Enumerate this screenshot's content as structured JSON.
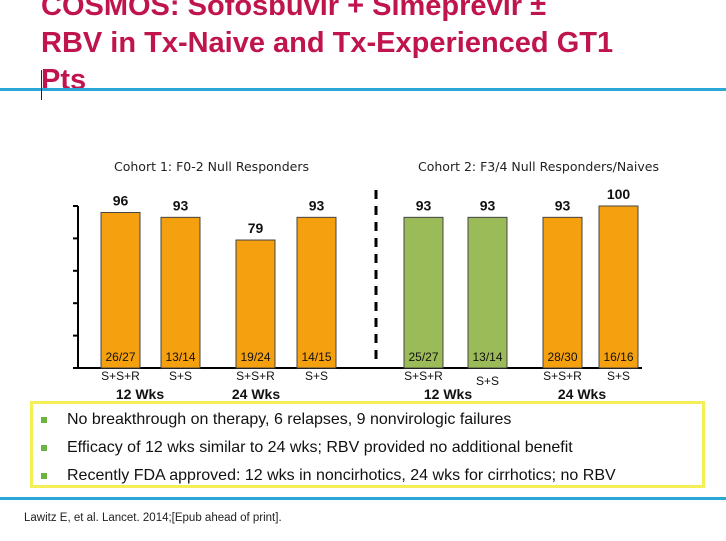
{
  "slide": {
    "title_lines": [
      "COSMOS: Sofosbuvir + Simeprevir ±",
      "RBV in Tx-Naive and Tx-Experienced GT1",
      "Pts"
    ]
  },
  "chart_data": {
    "type": "bar",
    "ylim": [
      0,
      100
    ],
    "cohorts": [
      {
        "label": "Cohort 1: F0-2 Null Responders",
        "groups": [
          {
            "label": "12 Wks",
            "bars": [
              {
                "category": "S+S+R",
                "value": 96,
                "fraction": "26/27",
                "color": "#f5a00f"
              },
              {
                "category": "S+S",
                "value": 93,
                "fraction": "13/14",
                "color": "#f5a00f"
              }
            ]
          },
          {
            "label": "24 Wks",
            "bars": [
              {
                "category": "S+S+R",
                "value": 79,
                "fraction": "19/24",
                "color": "#f5a00f"
              },
              {
                "category": "S+S",
                "value": 93,
                "fraction": "14/15",
                "color": "#f5a00f"
              }
            ]
          }
        ]
      },
      {
        "label": "Cohort 2: F3/4 Null Responders/Naives",
        "groups": [
          {
            "label": "12 Wks",
            "bars": [
              {
                "category": "S+S+R",
                "value": 93,
                "fraction": "25/27",
                "color": "#9bbb59"
              },
              {
                "category": "S+S",
                "value": 93,
                "fraction": "13/14",
                "color": "#9bbb59"
              }
            ]
          },
          {
            "label": "24 Wks",
            "bars": [
              {
                "category": "S+S+R",
                "value": 93,
                "fraction": "28/30",
                "color": "#f5a00f"
              },
              {
                "category": "S+S",
                "value": 100,
                "fraction": "16/16",
                "color": "#f5a00f"
              }
            ]
          }
        ]
      }
    ]
  },
  "bullets": [
    "No breakthrough on therapy, 6 relapses, 9 nonvirologic failures",
    "Efficacy of 12 wks similar to 24 wks; RBV provided no additional benefit",
    "Recently FDA approved: 12 wks in noncirhotics, 24 wks for cirrhotics; no RBV"
  ],
  "citation": "Lawitz E, et al. Lancet. 2014;[Epub ahead of print].",
  "colors": {
    "title": "#c0144c",
    "rule": "#2aa6d8",
    "callout_border": "#f3ef55",
    "bullet": "#6db33f"
  }
}
